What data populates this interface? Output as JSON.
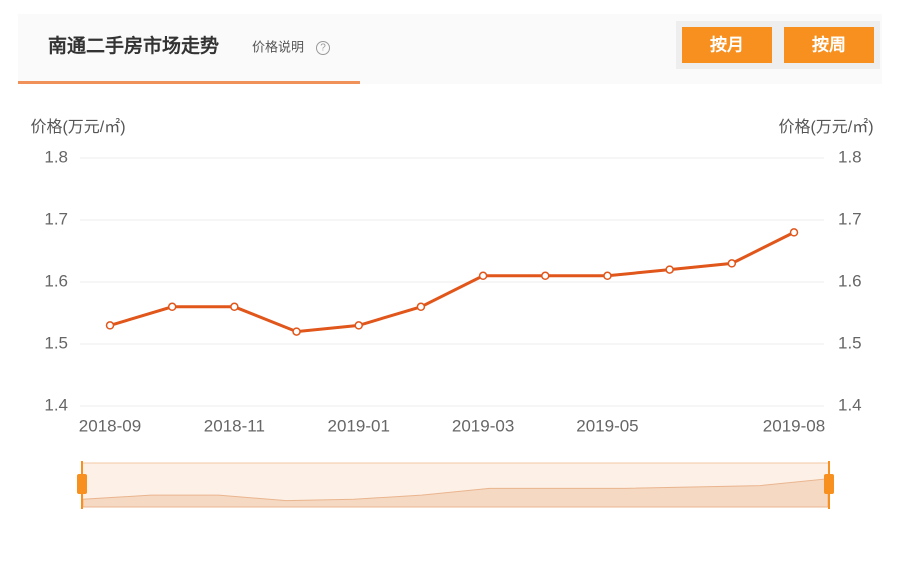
{
  "header": {
    "title": "南通二手房市场走势",
    "price_note": "价格说明",
    "buttons": [
      "按月",
      "按周"
    ]
  },
  "chart_data": {
    "type": "line",
    "y_label": "价格(万元/㎡)",
    "y2_label": "价格(万元/㎡)",
    "categories": [
      "2018-09",
      null,
      "2018-11",
      null,
      "2019-01",
      null,
      "2019-03",
      null,
      "2019-05",
      null,
      null,
      "2019-08"
    ],
    "series": [
      {
        "color": "#e0561b",
        "values": [
          1.53,
          1.56,
          1.56,
          1.52,
          1.53,
          1.56,
          1.61,
          1.61,
          1.61,
          1.62,
          1.63,
          1.68
        ]
      }
    ],
    "ylim": [
      1.4,
      1.8
    ],
    "yticks": [
      1.4,
      1.5,
      1.6,
      1.7,
      1.8
    ],
    "y2lim": [
      1.4,
      1.8
    ],
    "y2ticks": [
      1.4,
      1.5,
      1.6,
      1.7,
      1.8
    ],
    "grid": true
  }
}
